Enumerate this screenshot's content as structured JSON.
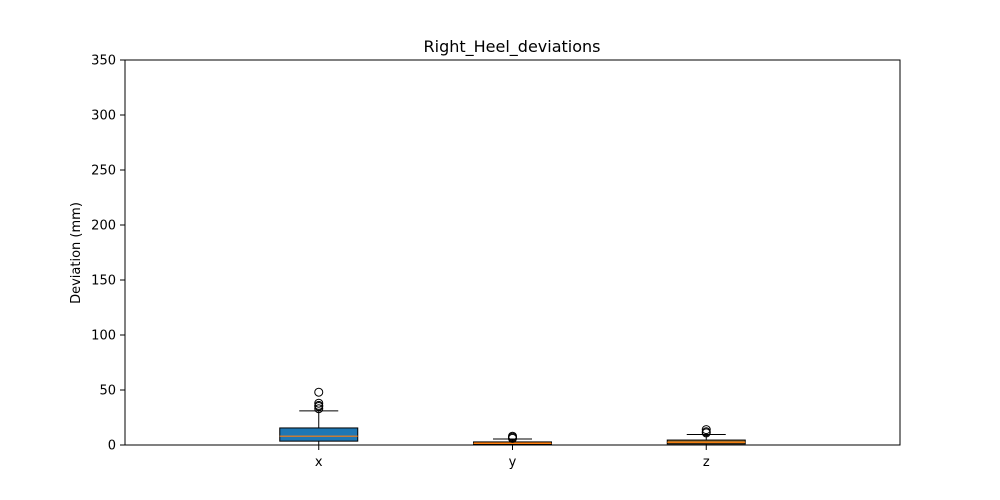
{
  "chart_data": {
    "type": "box",
    "title": "Right_Heel_deviations",
    "xlabel": "",
    "ylabel": "Deviation (mm)",
    "ylim": [
      0,
      350
    ],
    "yticks": [
      0,
      50,
      100,
      150,
      200,
      250,
      300,
      350
    ],
    "grid": false,
    "categories": [
      "x",
      "y",
      "z"
    ],
    "boxes": [
      {
        "category": "x",
        "color": "#1f77b4",
        "whisker_low": 0,
        "q1": 3.5,
        "median": 8,
        "q3": 15.5,
        "whisker_high": 31,
        "outliers": [
          33,
          35,
          36,
          38,
          48
        ]
      },
      {
        "category": "y",
        "color": "#ff7f0e",
        "whisker_low": 0,
        "q1": 0.5,
        "median": 1.5,
        "q3": 2.8,
        "whisker_high": 5.5,
        "outliers": [
          6,
          7,
          8
        ]
      },
      {
        "category": "z",
        "color": "#8c6d31",
        "whisker_low": 0,
        "q1": 1,
        "median": 2.5,
        "q3": 4.5,
        "whisker_high": 9.5,
        "outliers": [
          11,
          12,
          14
        ]
      }
    ],
    "median_color": "#ff7f0e"
  }
}
